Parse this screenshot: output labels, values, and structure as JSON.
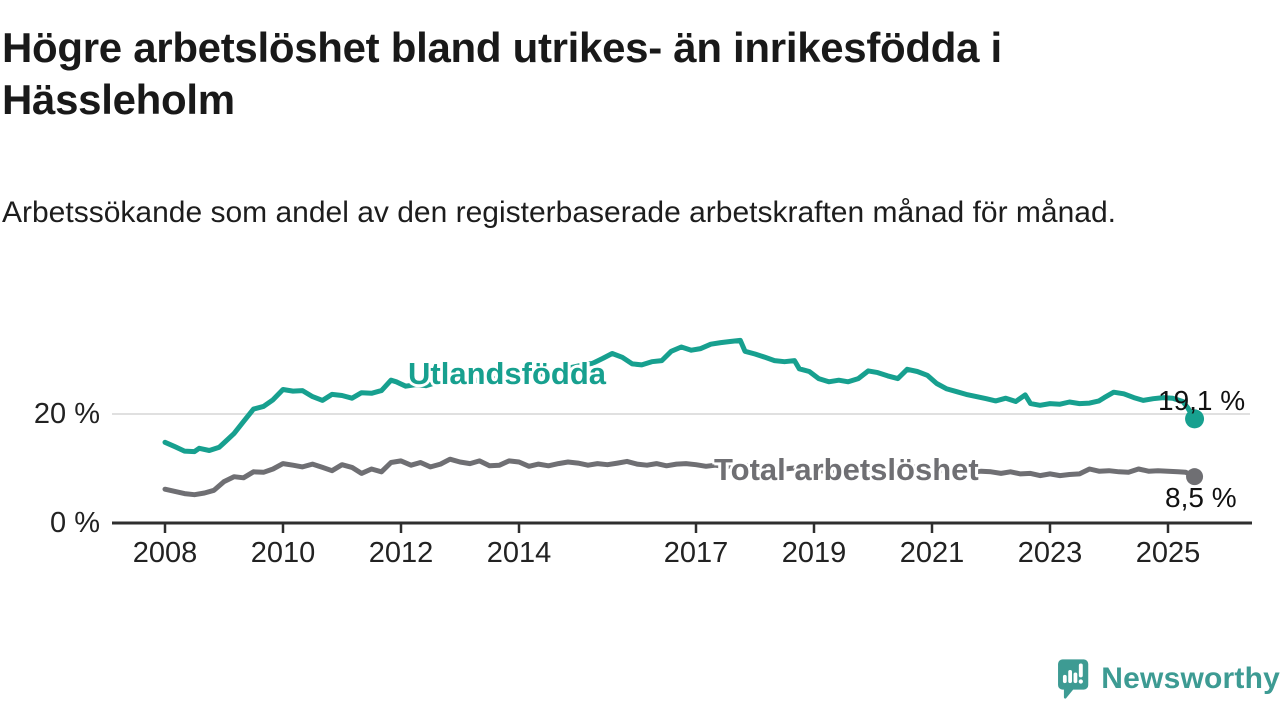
{
  "chart_data": {
    "type": "line",
    "title": "Högre arbetslöshet bland utrikes- än inrikesfödda i Hässleholm",
    "subtitle": "Arbetssökande som andel av den registerbaserade arbetskraften månad för månad.",
    "xlabel": "",
    "ylabel": "",
    "unit": "%",
    "xlim": [
      2007.1,
      2026.4
    ],
    "ylim": [
      0,
      36
    ],
    "grid": "single horizontal gridline at 20 %",
    "legend_position": "inline labels on lines",
    "x_axis": {
      "ticks": [
        2008,
        2010,
        2012,
        2014,
        2017,
        2019,
        2021,
        2023,
        2025
      ]
    },
    "y_axis": {
      "ticks": [
        {
          "value": 0,
          "label": "0 %"
        },
        {
          "value": 20,
          "label": "20 %"
        }
      ]
    },
    "series": [
      {
        "name": "Utlandsfödda",
        "color": "#17a08f",
        "last_value_label": "19,1 %",
        "points": [
          [
            2008.0,
            14.8
          ],
          [
            2008.17,
            14.0
          ],
          [
            2008.33,
            13.2
          ],
          [
            2008.5,
            13.1
          ],
          [
            2008.58,
            13.7
          ],
          [
            2008.75,
            13.3
          ],
          [
            2008.92,
            13.9
          ],
          [
            2009.0,
            14.7
          ],
          [
            2009.17,
            16.4
          ],
          [
            2009.33,
            18.6
          ],
          [
            2009.5,
            20.9
          ],
          [
            2009.67,
            21.4
          ],
          [
            2009.83,
            22.6
          ],
          [
            2010.0,
            24.5
          ],
          [
            2010.17,
            24.2
          ],
          [
            2010.33,
            24.3
          ],
          [
            2010.5,
            23.2
          ],
          [
            2010.67,
            22.5
          ],
          [
            2010.83,
            23.6
          ],
          [
            2011.0,
            23.4
          ],
          [
            2011.17,
            22.9
          ],
          [
            2011.33,
            23.9
          ],
          [
            2011.5,
            23.8
          ],
          [
            2011.67,
            24.3
          ],
          [
            2011.83,
            26.2
          ],
          [
            2011.92,
            25.9
          ],
          [
            2012.08,
            25.1
          ],
          [
            2012.25,
            25.4
          ],
          [
            2012.42,
            25.2
          ],
          [
            2012.58,
            25.7
          ],
          [
            2012.75,
            26.1
          ],
          [
            2012.92,
            25.8
          ],
          [
            2013.08,
            26.3
          ],
          [
            2013.25,
            26.1
          ],
          [
            2013.42,
            26.6
          ],
          [
            2013.58,
            26.4
          ],
          [
            2013.75,
            27.0
          ],
          [
            2013.92,
            27.3
          ],
          [
            2014.08,
            27.1
          ],
          [
            2014.25,
            27.5
          ],
          [
            2014.42,
            27.3
          ],
          [
            2014.58,
            27.8
          ],
          [
            2014.75,
            28.2
          ],
          [
            2014.92,
            28.6
          ],
          [
            2015.08,
            29.0
          ],
          [
            2015.25,
            29.3
          ],
          [
            2015.42,
            30.2
          ],
          [
            2015.58,
            31.1
          ],
          [
            2015.75,
            30.4
          ],
          [
            2015.92,
            29.2
          ],
          [
            2016.08,
            29.0
          ],
          [
            2016.25,
            29.6
          ],
          [
            2016.42,
            29.8
          ],
          [
            2016.58,
            31.5
          ],
          [
            2016.75,
            32.3
          ],
          [
            2016.92,
            31.7
          ],
          [
            2017.08,
            32.0
          ],
          [
            2017.25,
            32.8
          ],
          [
            2017.42,
            33.1
          ],
          [
            2017.58,
            33.3
          ],
          [
            2017.75,
            33.5
          ],
          [
            2017.83,
            31.5
          ],
          [
            2018.0,
            31.0
          ],
          [
            2018.17,
            30.4
          ],
          [
            2018.33,
            29.8
          ],
          [
            2018.5,
            29.6
          ],
          [
            2018.67,
            29.8
          ],
          [
            2018.75,
            28.3
          ],
          [
            2018.92,
            27.8
          ],
          [
            2019.08,
            26.5
          ],
          [
            2019.25,
            25.9
          ],
          [
            2019.42,
            26.2
          ],
          [
            2019.58,
            25.9
          ],
          [
            2019.75,
            26.5
          ],
          [
            2019.92,
            27.9
          ],
          [
            2020.08,
            27.6
          ],
          [
            2020.25,
            27.0
          ],
          [
            2020.42,
            26.5
          ],
          [
            2020.58,
            28.2
          ],
          [
            2020.75,
            27.8
          ],
          [
            2020.92,
            27.1
          ],
          [
            2021.08,
            25.6
          ],
          [
            2021.25,
            24.6
          ],
          [
            2021.42,
            24.1
          ],
          [
            2021.58,
            23.6
          ],
          [
            2021.75,
            23.2
          ],
          [
            2021.92,
            22.8
          ],
          [
            2022.08,
            22.4
          ],
          [
            2022.25,
            22.9
          ],
          [
            2022.42,
            22.3
          ],
          [
            2022.58,
            23.5
          ],
          [
            2022.67,
            21.9
          ],
          [
            2022.83,
            21.6
          ],
          [
            2023.0,
            21.9
          ],
          [
            2023.17,
            21.8
          ],
          [
            2023.33,
            22.2
          ],
          [
            2023.5,
            21.9
          ],
          [
            2023.67,
            22.0
          ],
          [
            2023.83,
            22.4
          ],
          [
            2023.92,
            23.0
          ],
          [
            2024.08,
            24.0
          ],
          [
            2024.25,
            23.7
          ],
          [
            2024.42,
            23.0
          ],
          [
            2024.58,
            22.5
          ],
          [
            2024.75,
            22.8
          ],
          [
            2024.92,
            23.0
          ],
          [
            2025.08,
            22.9
          ],
          [
            2025.25,
            22.3
          ],
          [
            2025.33,
            21.2
          ],
          [
            2025.45,
            19.1
          ]
        ]
      },
      {
        "name": "Total arbetslöshet",
        "color": "#6f6f73",
        "last_value_label": "8,5 %",
        "points": [
          [
            2008.0,
            6.2
          ],
          [
            2008.17,
            5.8
          ],
          [
            2008.33,
            5.4
          ],
          [
            2008.5,
            5.2
          ],
          [
            2008.67,
            5.5
          ],
          [
            2008.83,
            6.0
          ],
          [
            2009.0,
            7.6
          ],
          [
            2009.17,
            8.5
          ],
          [
            2009.33,
            8.3
          ],
          [
            2009.5,
            9.4
          ],
          [
            2009.67,
            9.3
          ],
          [
            2009.83,
            9.9
          ],
          [
            2010.0,
            10.9
          ],
          [
            2010.17,
            10.6
          ],
          [
            2010.33,
            10.3
          ],
          [
            2010.5,
            10.8
          ],
          [
            2010.67,
            10.2
          ],
          [
            2010.83,
            9.6
          ],
          [
            2011.0,
            10.7
          ],
          [
            2011.17,
            10.2
          ],
          [
            2011.33,
            9.1
          ],
          [
            2011.5,
            9.9
          ],
          [
            2011.67,
            9.4
          ],
          [
            2011.83,
            11.1
          ],
          [
            2012.0,
            11.4
          ],
          [
            2012.17,
            10.6
          ],
          [
            2012.33,
            11.1
          ],
          [
            2012.5,
            10.3
          ],
          [
            2012.67,
            10.8
          ],
          [
            2012.83,
            11.7
          ],
          [
            2013.0,
            11.2
          ],
          [
            2013.17,
            10.9
          ],
          [
            2013.33,
            11.4
          ],
          [
            2013.5,
            10.5
          ],
          [
            2013.67,
            10.6
          ],
          [
            2013.83,
            11.4
          ],
          [
            2014.0,
            11.2
          ],
          [
            2014.17,
            10.4
          ],
          [
            2014.33,
            10.8
          ],
          [
            2014.5,
            10.5
          ],
          [
            2014.67,
            10.9
          ],
          [
            2014.83,
            11.2
          ],
          [
            2015.0,
            11.0
          ],
          [
            2015.17,
            10.6
          ],
          [
            2015.33,
            10.9
          ],
          [
            2015.5,
            10.7
          ],
          [
            2015.67,
            11.0
          ],
          [
            2015.83,
            11.3
          ],
          [
            2016.0,
            10.8
          ],
          [
            2016.17,
            10.6
          ],
          [
            2016.33,
            10.9
          ],
          [
            2016.5,
            10.5
          ],
          [
            2016.67,
            10.8
          ],
          [
            2016.83,
            10.9
          ],
          [
            2017.0,
            10.7
          ],
          [
            2017.17,
            10.4
          ],
          [
            2017.33,
            10.6
          ],
          [
            2017.5,
            10.3
          ],
          [
            2017.67,
            10.5
          ],
          [
            2017.83,
            10.6
          ],
          [
            2018.0,
            10.3
          ],
          [
            2018.17,
            10.0
          ],
          [
            2018.33,
            10.2
          ],
          [
            2018.5,
            9.9
          ],
          [
            2018.67,
            10.1
          ],
          [
            2018.83,
            9.9
          ],
          [
            2019.0,
            9.7
          ],
          [
            2019.17,
            9.5
          ],
          [
            2019.33,
            9.7
          ],
          [
            2019.5,
            9.4
          ],
          [
            2019.67,
            9.6
          ],
          [
            2019.83,
            9.9
          ],
          [
            2020.0,
            9.8
          ],
          [
            2020.17,
            10.1
          ],
          [
            2020.33,
            10.4
          ],
          [
            2020.5,
            10.2
          ],
          [
            2020.67,
            10.3
          ],
          [
            2020.83,
            10.0
          ],
          [
            2021.0,
            9.8
          ],
          [
            2021.17,
            9.6
          ],
          [
            2021.33,
            9.4
          ],
          [
            2021.5,
            9.6
          ],
          [
            2021.67,
            9.3
          ],
          [
            2021.83,
            9.5
          ],
          [
            2022.0,
            9.4
          ],
          [
            2022.17,
            9.1
          ],
          [
            2022.33,
            9.4
          ],
          [
            2022.5,
            9.0
          ],
          [
            2022.67,
            9.1
          ],
          [
            2022.83,
            8.7
          ],
          [
            2023.0,
            9.0
          ],
          [
            2023.17,
            8.7
          ],
          [
            2023.33,
            8.9
          ],
          [
            2023.5,
            9.0
          ],
          [
            2023.67,
            9.9
          ],
          [
            2023.83,
            9.5
          ],
          [
            2024.0,
            9.6
          ],
          [
            2024.17,
            9.4
          ],
          [
            2024.33,
            9.3
          ],
          [
            2024.5,
            9.9
          ],
          [
            2024.67,
            9.5
          ],
          [
            2024.83,
            9.6
          ],
          [
            2025.0,
            9.5
          ],
          [
            2025.17,
            9.4
          ],
          [
            2025.3,
            9.3
          ],
          [
            2025.45,
            8.5
          ]
        ]
      }
    ],
    "colors": {
      "axis": "#2e2e2e",
      "gridline": "#e0e0e0",
      "text": "#1a1a1a",
      "teal": "#17a08f",
      "gray": "#6f6f73"
    }
  },
  "branding": {
    "name": "Newsworthy",
    "logo_color": "#3d9b93",
    "icon": "speech-bubble-with-bar-chart-and-exclamation"
  }
}
